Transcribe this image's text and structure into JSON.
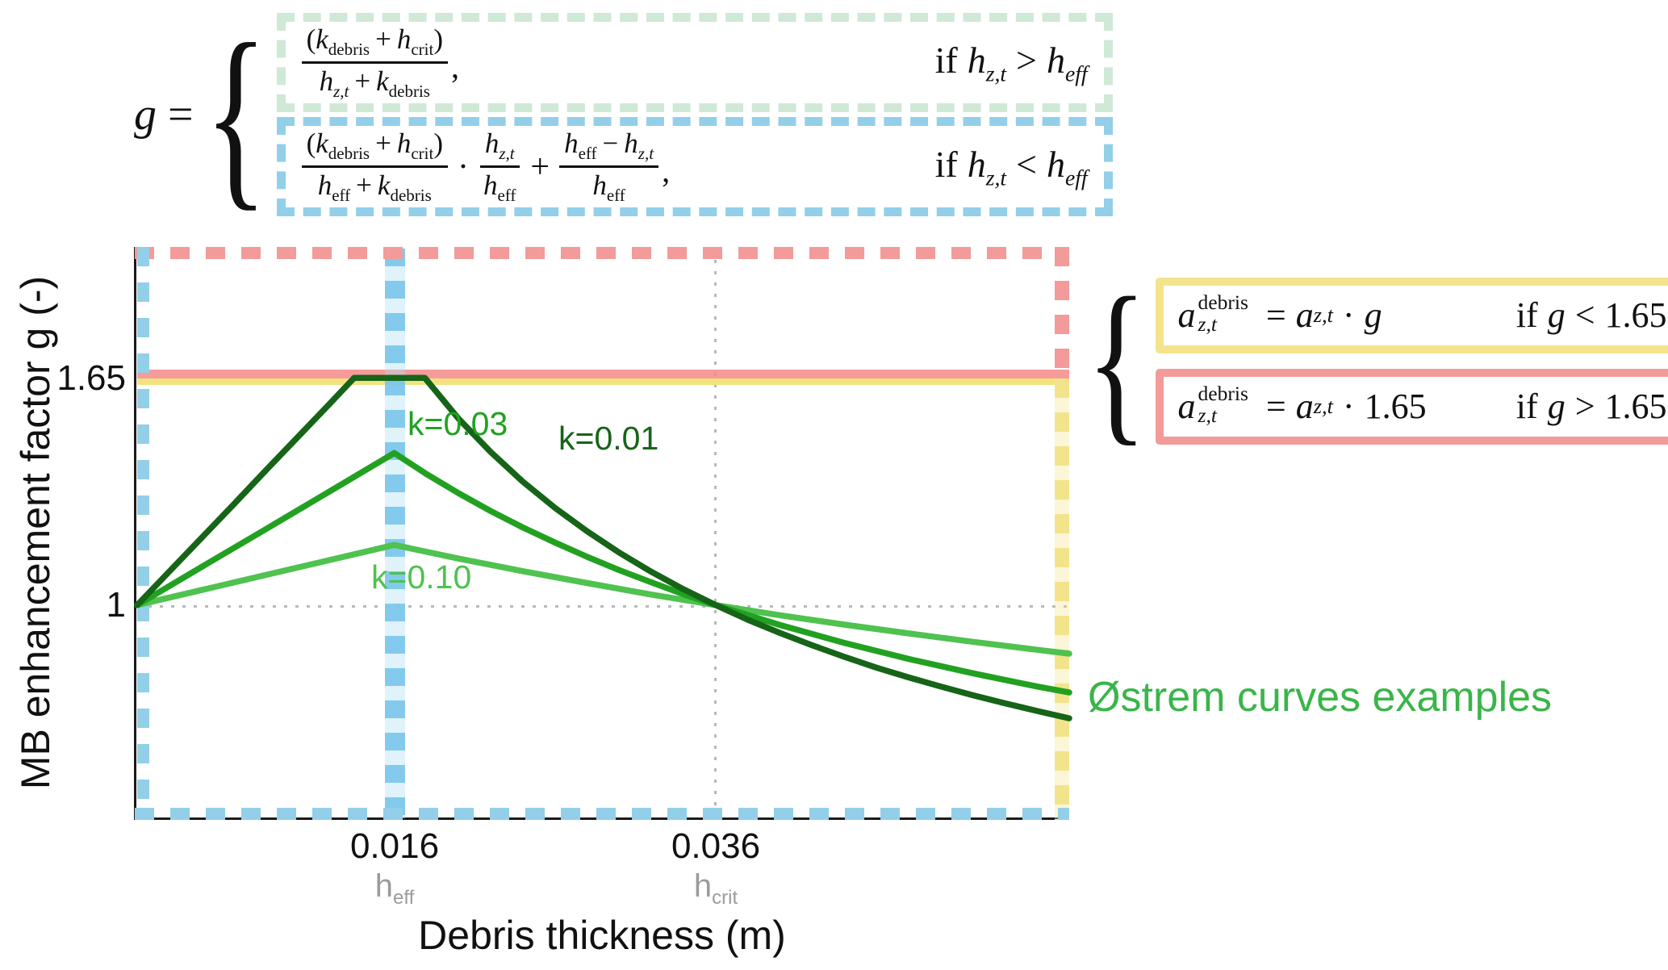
{
  "figure": {
    "annotation": "Østrem curves examples"
  },
  "eq_top": {
    "lhs": "g",
    "equals": "=",
    "brace": "{",
    "case1": {
      "num": {
        "p1": "(",
        "v1": "k",
        "s1": "debris",
        "op": "+",
        "v2": "h",
        "s2": "crit",
        "p2": ")"
      },
      "den": {
        "v1": "h",
        "s1": "z,t",
        "op": "+",
        "v2": "k",
        "s2": "debris"
      },
      "comma": ",",
      "cond": {
        "kw": "if",
        "v1": "h",
        "v1s": "z,t",
        "op": ">",
        "v2": "h",
        "v2s": "eff"
      }
    },
    "case2": {
      "f1": {
        "num": {
          "p1": "(",
          "v1": "k",
          "s1": "debris",
          "op": "+",
          "v2": "h",
          "s2": "crit",
          "p2": ")"
        },
        "den": {
          "v1": "h",
          "s1": "eff",
          "op": "+",
          "v2": "k",
          "s2": "debris"
        }
      },
      "times": "·",
      "f2": {
        "num": {
          "v1": "h",
          "s1": "z,t"
        },
        "den": {
          "v1": "h",
          "s1": "eff"
        }
      },
      "plus": "+",
      "f3": {
        "num": {
          "v1": "h",
          "s1": "eff",
          "op": "−",
          "v2": "h",
          "s2": "z,t"
        },
        "den": {
          "v1": "h",
          "s1": "eff"
        }
      },
      "comma": ",",
      "cond": {
        "kw": "if",
        "v1": "h",
        "v1s": "z,t",
        "op": "<",
        "v2": "h",
        "v2s": "eff"
      }
    }
  },
  "eq_right": {
    "brace": "{",
    "case_low": {
      "lhs": {
        "base": "a",
        "sup": "debris",
        "sub": "z,t"
      },
      "equals": "=",
      "rhs_base": "a",
      "rhs_sub": "z,t",
      "times": "·",
      "factor": "g",
      "cond": {
        "kw": "if",
        "var": "g",
        "op": "<",
        "val": "1.65"
      }
    },
    "case_high": {
      "lhs": {
        "base": "a",
        "sup": "debris",
        "sub": "z,t"
      },
      "equals": "=",
      "rhs_base": "a",
      "rhs_sub": "z,t",
      "times": "·",
      "factor": "1.65",
      "cond": {
        "kw": "if",
        "var": "g",
        "op": ">",
        "val": "1.65"
      }
    }
  },
  "axes": {
    "ylabel": "MB enhancement factor g (-)",
    "xlabel": "Debris thickness (m)",
    "yticks": [
      "1.65",
      "1"
    ],
    "xticks": [
      "0.016",
      "0.036"
    ],
    "xtick_subs": [
      {
        "base": "h",
        "sub": "eff"
      },
      {
        "base": "h",
        "sub": "crit"
      }
    ]
  },
  "curve_labels": {
    "k001": "k=0.01",
    "k003": "k=0.03",
    "k010": "k=0.10"
  },
  "colors": {
    "curve_dark_green": "#166418",
    "curve_mid_green": "#22a121",
    "curve_light_green": "#4fc24f",
    "annotation_green": "#3ab54a",
    "highlight_blue": "#93cfe9",
    "highlight_green": "#cfe9d6",
    "highlight_pink": "#f29b9a",
    "highlight_yellow": "#f3e48c",
    "grid_gray": "#b8b8b8"
  },
  "chart_data": {
    "type": "line",
    "title": "",
    "xlabel": "Debris thickness (m)",
    "ylabel": "MB enhancement factor g (-)",
    "xlim": [
      0,
      0.058
    ],
    "ylim": [
      0.39,
      2.02
    ],
    "grid": {
      "horizontal_at": [
        1
      ],
      "vertical_at": [
        0.036
      ]
    },
    "reference_lines": {
      "g_cap": 1.65,
      "h_eff": 0.016,
      "h_crit": 0.036
    },
    "legend_position": "none",
    "series": [
      {
        "name": "k=0.01",
        "k": 0.01,
        "color": "#166418",
        "x": [
          0,
          0.002,
          0.004,
          0.006,
          0.008,
          0.01,
          0.012,
          0.0135,
          0.0179,
          0.02,
          0.022,
          0.024,
          0.026,
          0.028,
          0.03,
          0.032,
          0.034,
          0.036,
          0.038,
          0.04,
          0.042,
          0.044,
          0.046,
          0.048,
          0.05,
          0.052,
          0.054,
          0.056,
          0.058
        ],
        "y": [
          1.0,
          1.096,
          1.192,
          1.288,
          1.385,
          1.481,
          1.577,
          1.65,
          1.65,
          1.533,
          1.438,
          1.353,
          1.278,
          1.211,
          1.15,
          1.095,
          1.045,
          1.0,
          0.958,
          0.92,
          0.885,
          0.852,
          0.821,
          0.793,
          0.767,
          0.742,
          0.719,
          0.697,
          0.676
        ]
      },
      {
        "name": "k=0.03",
        "k": 0.03,
        "color": "#22a121",
        "x": [
          0,
          0.004,
          0.008,
          0.012,
          0.016,
          0.018,
          0.02,
          0.022,
          0.024,
          0.026,
          0.028,
          0.03,
          0.032,
          0.034,
          0.036,
          0.04,
          0.044,
          0.048,
          0.052,
          0.056,
          0.058
        ],
        "y": [
          1.0,
          1.109,
          1.217,
          1.326,
          1.435,
          1.375,
          1.32,
          1.269,
          1.222,
          1.179,
          1.138,
          1.1,
          1.065,
          1.031,
          1.0,
          0.943,
          0.892,
          0.846,
          0.805,
          0.767,
          0.75
        ]
      },
      {
        "name": "k=0.10",
        "k": 0.1,
        "color": "#4fc24f",
        "x": [
          0,
          0.004,
          0.008,
          0.012,
          0.016,
          0.02,
          0.024,
          0.028,
          0.032,
          0.036,
          0.04,
          0.044,
          0.048,
          0.052,
          0.056,
          0.058
        ],
        "y": [
          1.0,
          1.043,
          1.086,
          1.129,
          1.172,
          1.133,
          1.097,
          1.063,
          1.03,
          1.0,
          0.971,
          0.944,
          0.919,
          0.895,
          0.872,
          0.861
        ]
      }
    ]
  }
}
